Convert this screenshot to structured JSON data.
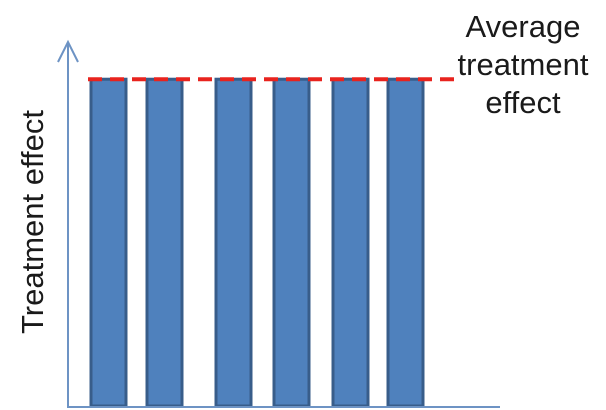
{
  "chart_data": {
    "type": "bar",
    "ylabel": "Treatment effect",
    "xlabel": "",
    "title": "",
    "categories": [
      "",
      "",
      "",
      "",
      "",
      ""
    ],
    "values": [
      1,
      1,
      1,
      1,
      1,
      1
    ],
    "ylim": [
      0,
      1.12
    ],
    "reference_line": {
      "value": 1,
      "style": "dashed",
      "color": "#e8231e",
      "label_lines": [
        "Average",
        "treatment",
        "effect"
      ]
    },
    "colors": {
      "bar_fill": "#4f81bd",
      "bar_edge": "#385d8a",
      "axis": "#6d93c4"
    }
  }
}
